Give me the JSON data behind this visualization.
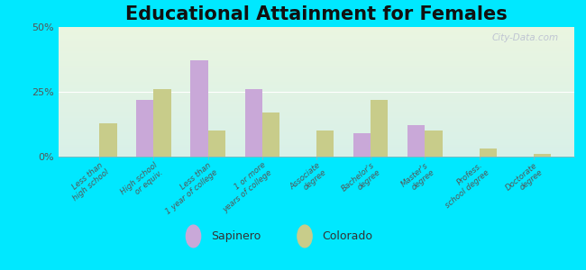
{
  "title": "Educational Attainment for Females",
  "categories": [
    "Less than\nhigh school",
    "High school\nor equiv.",
    "Less than\n1 year of college",
    "1 or more\nyears of college",
    "Associate\ndegree",
    "Bachelor's\ndegree",
    "Master's\ndegree",
    "Profess.\nschool degree",
    "Doctorate\ndegree"
  ],
  "sapinero": [
    0,
    22,
    37,
    26,
    0,
    9,
    12,
    0,
    0
  ],
  "colorado": [
    13,
    26,
    10,
    17,
    10,
    22,
    10,
    3,
    1
  ],
  "sapinero_color": "#c9a8d8",
  "colorado_color": "#c8cc8a",
  "background_top": "#eaf5e0",
  "background_bottom": "#d8f0e8",
  "outer_background": "#00e8ff",
  "ylim": [
    0,
    50
  ],
  "yticks": [
    0,
    25,
    50
  ],
  "ytick_labels": [
    "0%",
    "25%",
    "50%"
  ],
  "title_fontsize": 15,
  "bar_width": 0.32,
  "legend_marker_color_sapinero": "#c9a8d8",
  "legend_marker_color_colorado": "#c8cc8a"
}
